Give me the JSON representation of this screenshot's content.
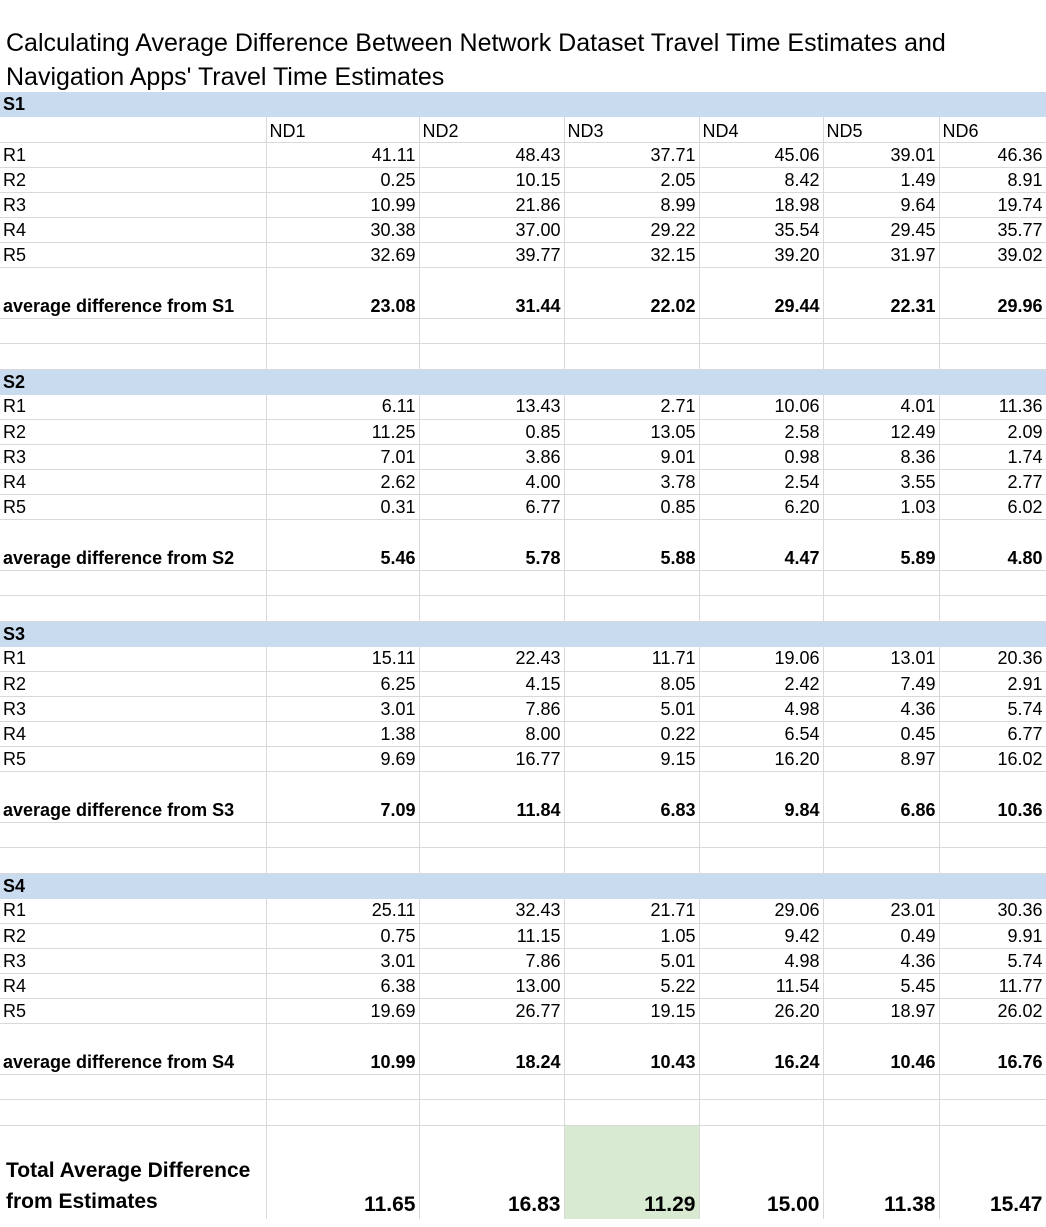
{
  "title": "Calculating Average Difference Between Network Dataset Travel Time Estimates and Navigation Apps' Travel Time Estimates",
  "columns": [
    "ND1",
    "ND2",
    "ND3",
    "ND4",
    "ND5",
    "ND6"
  ],
  "row_labels": [
    "R1",
    "R2",
    "R3",
    "R4",
    "R5"
  ],
  "sections": [
    {
      "name": "S1",
      "rows": [
        [
          "41.11",
          "48.43",
          "37.71",
          "45.06",
          "39.01",
          "46.36"
        ],
        [
          "0.25",
          "10.15",
          "2.05",
          "8.42",
          "1.49",
          "8.91"
        ],
        [
          "10.99",
          "21.86",
          "8.99",
          "18.98",
          "9.64",
          "19.74"
        ],
        [
          "30.38",
          "37.00",
          "29.22",
          "35.54",
          "29.45",
          "35.77"
        ],
        [
          "32.69",
          "39.77",
          "32.15",
          "39.20",
          "31.97",
          "39.02"
        ]
      ],
      "avg_label": "average difference from S1",
      "avg": [
        "23.08",
        "31.44",
        "22.02",
        "29.44",
        "22.31",
        "29.96"
      ]
    },
    {
      "name": "S2",
      "rows": [
        [
          "6.11",
          "13.43",
          "2.71",
          "10.06",
          "4.01",
          "11.36"
        ],
        [
          "11.25",
          "0.85",
          "13.05",
          "2.58",
          "12.49",
          "2.09"
        ],
        [
          "7.01",
          "3.86",
          "9.01",
          "0.98",
          "8.36",
          "1.74"
        ],
        [
          "2.62",
          "4.00",
          "3.78",
          "2.54",
          "3.55",
          "2.77"
        ],
        [
          "0.31",
          "6.77",
          "0.85",
          "6.20",
          "1.03",
          "6.02"
        ]
      ],
      "avg_label": "average difference from S2",
      "avg": [
        "5.46",
        "5.78",
        "5.88",
        "4.47",
        "5.89",
        "4.80"
      ]
    },
    {
      "name": "S3",
      "rows": [
        [
          "15.11",
          "22.43",
          "11.71",
          "19.06",
          "13.01",
          "20.36"
        ],
        [
          "6.25",
          "4.15",
          "8.05",
          "2.42",
          "7.49",
          "2.91"
        ],
        [
          "3.01",
          "7.86",
          "5.01",
          "4.98",
          "4.36",
          "5.74"
        ],
        [
          "1.38",
          "8.00",
          "0.22",
          "6.54",
          "0.45",
          "6.77"
        ],
        [
          "9.69",
          "16.77",
          "9.15",
          "16.20",
          "8.97",
          "16.02"
        ]
      ],
      "avg_label": "average difference from S3",
      "avg": [
        "7.09",
        "11.84",
        "6.83",
        "9.84",
        "6.86",
        "10.36"
      ]
    },
    {
      "name": "S4",
      "rows": [
        [
          "25.11",
          "32.43",
          "21.71",
          "29.06",
          "23.01",
          "30.36"
        ],
        [
          "0.75",
          "11.15",
          "1.05",
          "9.42",
          "0.49",
          "9.91"
        ],
        [
          "3.01",
          "7.86",
          "5.01",
          "4.98",
          "4.36",
          "5.74"
        ],
        [
          "6.38",
          "13.00",
          "5.22",
          "11.54",
          "5.45",
          "11.77"
        ],
        [
          "19.69",
          "26.77",
          "19.15",
          "26.20",
          "18.97",
          "26.02"
        ]
      ],
      "avg_label": "average difference from S4",
      "avg": [
        "10.99",
        "18.24",
        "10.43",
        "16.24",
        "10.46",
        "16.76"
      ]
    }
  ],
  "total": {
    "label": "Total Average Difference from Estimates",
    "values": [
      "11.65",
      "16.83",
      "11.29",
      "15.00",
      "11.38",
      "15.47"
    ],
    "highlight_column": 2,
    "highlight_color": "#d9ead3"
  },
  "colors": {
    "section_header_bg": "#c9dbee",
    "gridline": "#d9d9d9"
  }
}
